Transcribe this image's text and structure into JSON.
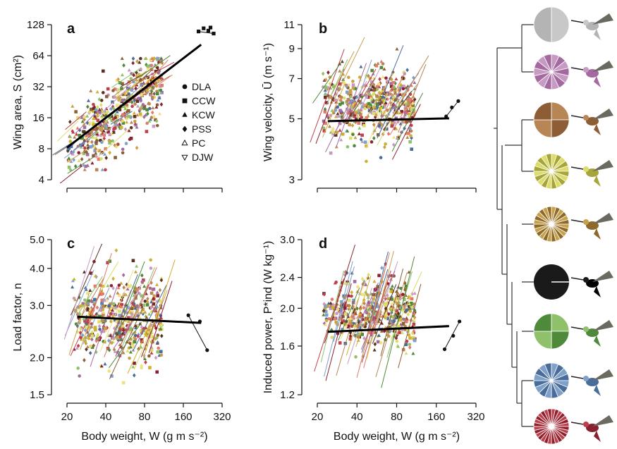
{
  "chart_data": [
    {
      "panel": "a",
      "type": "scatter",
      "ylabel": "Wing area, S (cm²)",
      "xlabel": "",
      "x_scale": "log",
      "y_scale": "log",
      "xlim": [
        20,
        320
      ],
      "ylim": [
        4,
        128
      ],
      "y_ticks": [
        "4",
        "8",
        "16",
        "32",
        "64",
        "128"
      ],
      "x_ticks": [],
      "fit_line": {
        "x": [
          20,
          220
        ],
        "y": [
          8.2,
          82
        ]
      },
      "cluster": {
        "x_range": [
          20,
          110
        ],
        "y_range": [
          5,
          60
        ],
        "trend_slope": 0.95
      },
      "legend": [
        {
          "marker": "circle",
          "label": "DLA"
        },
        {
          "marker": "square",
          "label": "CCW"
        },
        {
          "marker": "triangle",
          "label": "KCW"
        },
        {
          "marker": "diamond",
          "label": "PSS"
        },
        {
          "marker": "triangle-open",
          "label": "PC"
        },
        {
          "marker": "triangle-down-open",
          "label": "DJW"
        }
      ],
      "outliers": [
        {
          "x": 210,
          "y": 110
        },
        {
          "x": 230,
          "y": 118
        },
        {
          "x": 250,
          "y": 112
        },
        {
          "x": 260,
          "y": 120
        },
        {
          "x": 275,
          "y": 105
        }
      ]
    },
    {
      "panel": "b",
      "type": "scatter",
      "ylabel": "Wing velocity, Ū (m s⁻¹)",
      "xlabel": "",
      "x_scale": "log",
      "y_scale": "log",
      "xlim": [
        20,
        320
      ],
      "ylim": [
        3,
        11
      ],
      "y_ticks": [
        "3",
        "5",
        "7",
        "9",
        "11"
      ],
      "x_ticks": [],
      "fit_line": {
        "x": [
          24,
          200
        ],
        "y": [
          4.9,
          5.02
        ]
      },
      "cluster": {
        "x_range": [
          22,
          110
        ],
        "y_range": [
          3.5,
          9
        ],
        "trend_slope": 0.0
      },
      "outliers": [
        {
          "x": 190,
          "y": 5.1
        },
        {
          "x": 210,
          "y": 5.5
        },
        {
          "x": 235,
          "y": 5.8
        }
      ]
    },
    {
      "panel": "c",
      "type": "scatter",
      "ylabel": "Load factor, n",
      "xlabel": "Body weight, W (g m s⁻²)",
      "x_scale": "log",
      "y_scale": "log",
      "xlim": [
        20,
        320
      ],
      "ylim": [
        1.5,
        5.0
      ],
      "y_ticks": [
        "1.5",
        "2.0",
        "3.0",
        "4.0",
        "5.0"
      ],
      "x_ticks": [
        "20",
        "40",
        "80",
        "160",
        "320"
      ],
      "fit_line": {
        "x": [
          24,
          220
        ],
        "y": [
          2.75,
          2.62
        ]
      },
      "cluster": {
        "x_range": [
          22,
          110
        ],
        "y_range": [
          1.6,
          4.6
        ],
        "trend_slope": 0.0
      },
      "outliers": [
        {
          "x": 175,
          "y": 2.78
        },
        {
          "x": 215,
          "y": 2.65
        },
        {
          "x": 245,
          "y": 2.12
        }
      ]
    },
    {
      "panel": "d",
      "type": "scatter",
      "ylabel": "Induced power, P*ind (W kg⁻¹)",
      "xlabel": "Body weight, W (g m s⁻²)",
      "x_scale": "log",
      "y_scale": "log",
      "xlim": [
        20,
        320
      ],
      "ylim": [
        1.2,
        3.0
      ],
      "y_ticks": [
        "1.2",
        "1.6",
        "2.0",
        "2.4",
        "3.0"
      ],
      "x_ticks": [
        "20",
        "40",
        "80",
        "160",
        "320"
      ],
      "fit_line": {
        "x": [
          24,
          200
        ],
        "y": [
          1.74,
          1.8
        ]
      },
      "cluster": {
        "x_range": [
          22,
          110
        ],
        "y_range": [
          1.45,
          2.6
        ],
        "trend_slope": 0.0
      },
      "outliers": [
        {
          "x": 185,
          "y": 1.57
        },
        {
          "x": 215,
          "y": 1.7
        },
        {
          "x": 240,
          "y": 1.85
        }
      ]
    }
  ],
  "species": [
    {
      "color": "#c8c8c8",
      "dark": "#b4b4b4",
      "wedges": 2
    },
    {
      "color": "#c79ac4",
      "dark": "#a46a9f",
      "wedges": 14
    },
    {
      "color": "#b88555",
      "dark": "#8d5d35",
      "wedges": 4
    },
    {
      "color": "#dcdc6a",
      "dark": "#a7a43a",
      "wedges": 20
    },
    {
      "color": "#c8a04a",
      "dark": "#8d6a2a",
      "wedges": 24
    },
    {
      "color": "#1a1a1a",
      "dark": "#000000",
      "wedges": 1
    },
    {
      "color": "#8fc06a",
      "dark": "#4e8a3a",
      "wedges": 4
    },
    {
      "color": "#7fa0c8",
      "dark": "#4a6c9a",
      "wedges": 16
    },
    {
      "color": "#c0404a",
      "dark": "#8a2030",
      "wedges": 28
    }
  ],
  "panel_labels": [
    "a",
    "b",
    "c",
    "d"
  ]
}
